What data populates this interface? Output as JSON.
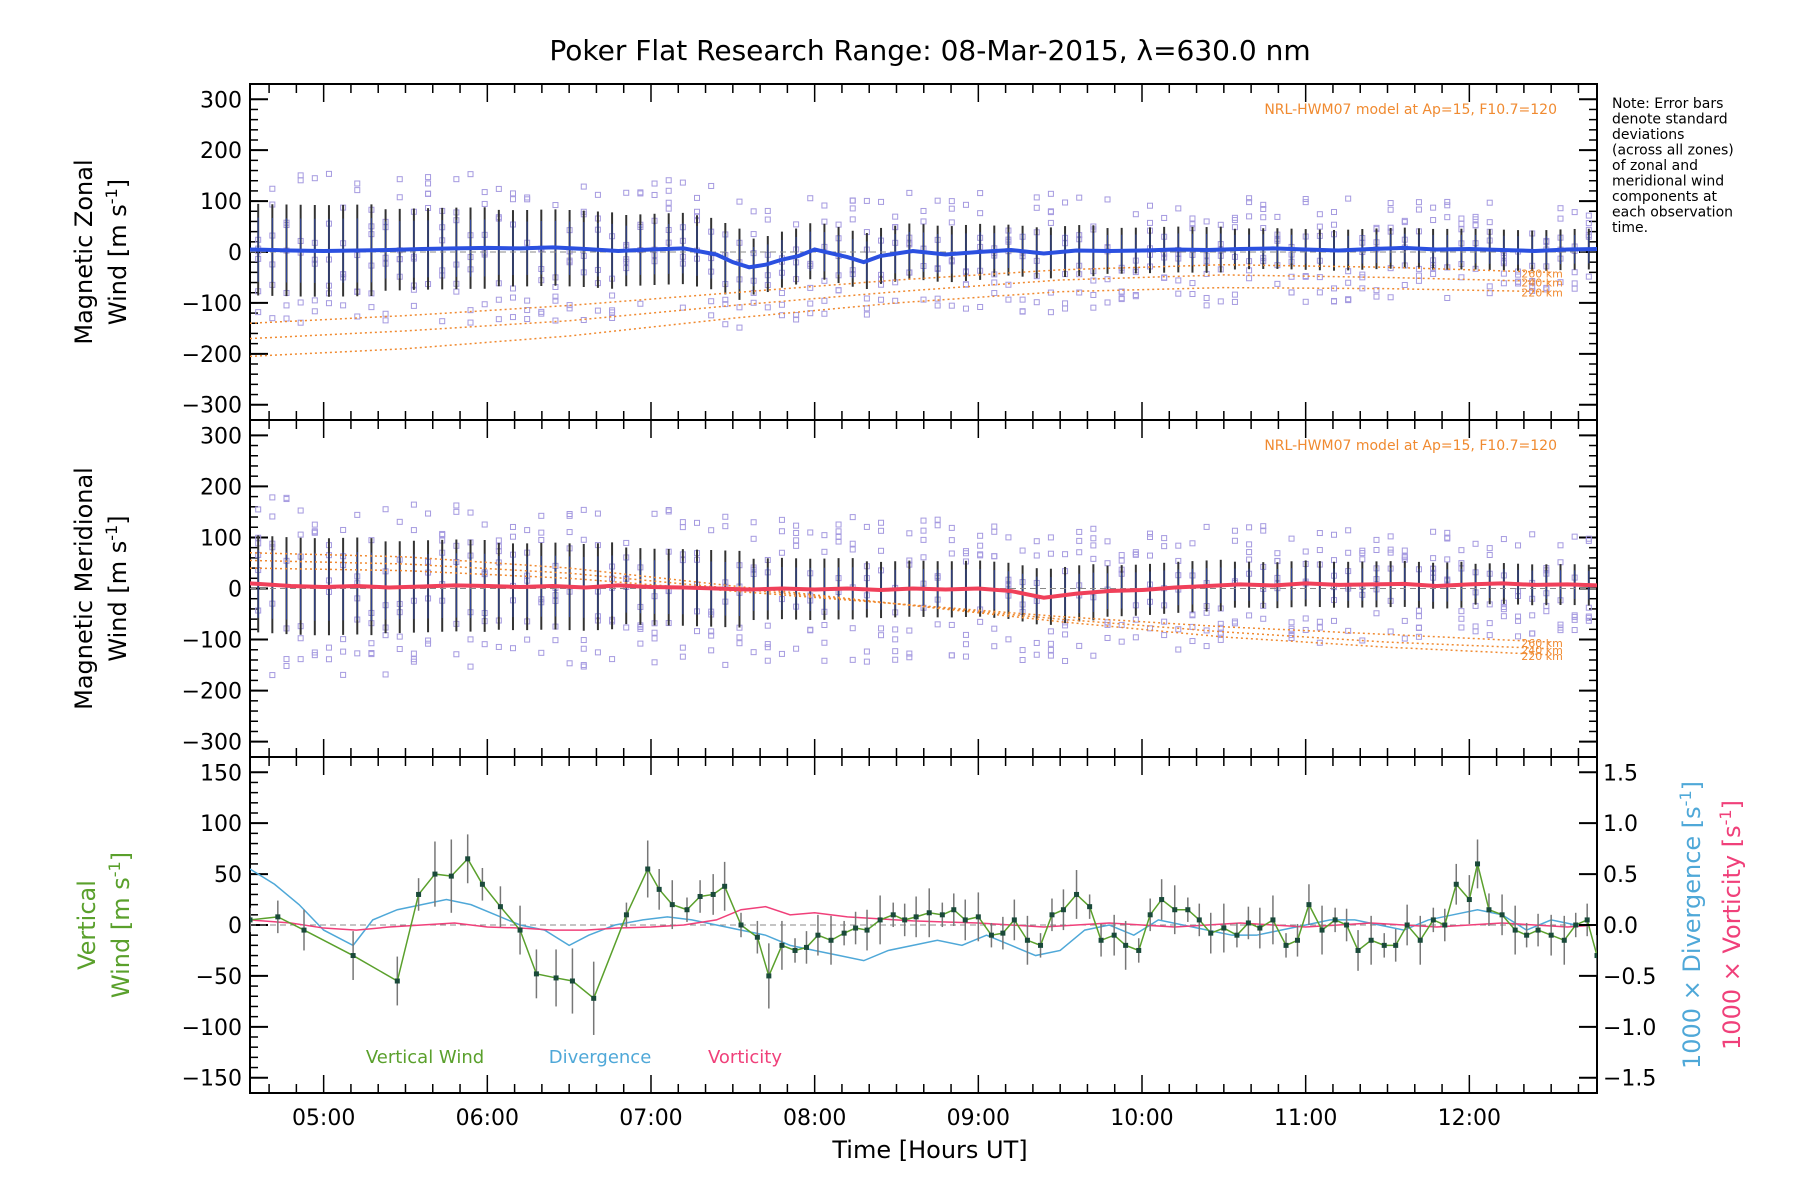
{
  "figure": {
    "title": "Poker Flat Research Range: 08-Mar-2015, λ=630.0 nm",
    "xlabel": "Time [Hours UT]",
    "x_ticks": [
      "05:00",
      "06:00",
      "07:00",
      "08:00",
      "09:00",
      "10:00",
      "11:00",
      "12:00"
    ],
    "note_lines": [
      "Note: Error bars",
      "denote standard",
      "deviations",
      "(across all zones)",
      "of zonal and",
      "meridional wind",
      "components at",
      "each observation",
      "time."
    ],
    "model_label": "NRL-HWM07 model at Ap=15, F10.7=120",
    "altitude_labels": [
      "260 km",
      "240 km",
      "220 km"
    ],
    "colors": {
      "zonal": "#2b50e0",
      "meridional": "#f0405a",
      "vertical": "#5aa02c",
      "divergence": "#4fa8d8",
      "vorticity": "#f0407a",
      "model": "#f08a30",
      "scatter": "#a59ae0",
      "errbar": "#000000"
    }
  },
  "chart_data": [
    {
      "type": "line",
      "panel": "zonal",
      "ylabel_line1": "Magnetic Zonal",
      "ylabel_line2": "Wind [m s",
      "ylabel_sup": "-1",
      "ylabel_close": "]",
      "ylim": [
        -330,
        330
      ],
      "y_ticks": [
        "300",
        "200",
        "100",
        "0",
        "−100",
        "−200",
        "−300"
      ],
      "x_unit": "hours UT",
      "xlim": [
        4.55,
        12.78
      ],
      "series": [
        {
          "x": [
            4.55,
            4.8,
            5.0,
            5.2,
            5.4,
            5.6,
            5.8,
            6.0,
            6.2,
            6.4,
            6.6,
            6.8,
            7.0,
            7.2,
            7.4,
            7.5,
            7.6,
            7.7,
            7.8,
            7.9,
            8.0,
            8.2,
            8.3,
            8.4,
            8.6,
            8.8,
            9.0,
            9.2,
            9.4,
            9.6,
            9.8,
            10.0,
            10.2,
            10.4,
            10.6,
            10.8,
            11.0,
            11.2,
            11.4,
            11.6,
            11.8,
            12.0,
            12.2,
            12.4,
            12.6,
            12.78
          ],
          "y": [
            5,
            3,
            2,
            3,
            4,
            6,
            7,
            8,
            7,
            9,
            6,
            2,
            5,
            7,
            -5,
            -20,
            -30,
            -25,
            -15,
            -8,
            5,
            -10,
            -20,
            -8,
            2,
            -5,
            0,
            4,
            -3,
            3,
            2,
            3,
            5,
            4,
            6,
            7,
            5,
            3,
            6,
            8,
            5,
            6,
            4,
            2,
            5,
            6
          ]
        }
      ],
      "model_curves": [
        {
          "name": "260 km",
          "x": [
            4.55,
            5.5,
            6.5,
            7.5,
            8.5,
            9.5,
            10.5,
            11.5,
            12.5
          ],
          "y": [
            -140,
            -125,
            -105,
            -80,
            -55,
            -35,
            -25,
            -30,
            -40
          ]
        },
        {
          "name": "240 km",
          "x": [
            4.55,
            5.5,
            6.5,
            7.5,
            8.5,
            9.5,
            10.5,
            11.5,
            12.5
          ],
          "y": [
            -170,
            -155,
            -135,
            -105,
            -78,
            -55,
            -45,
            -50,
            -58
          ]
        },
        {
          "name": "220 km",
          "x": [
            4.55,
            5.5,
            6.5,
            7.5,
            8.5,
            9.5,
            10.5,
            11.5,
            12.5
          ],
          "y": [
            -205,
            -190,
            -165,
            -130,
            -100,
            -78,
            -70,
            -72,
            -78
          ]
        }
      ],
      "error_sd": [
        90,
        80,
        75,
        70,
        55,
        55,
        50,
        45,
        40,
        40,
        40
      ],
      "scatter_spread": 160
    },
    {
      "type": "line",
      "panel": "meridional",
      "ylabel_line1": "Magnetic Meridional",
      "ylabel_line2": "Wind [m s",
      "ylabel_sup": "-1",
      "ylabel_close": "]",
      "ylim": [
        -330,
        330
      ],
      "y_ticks": [
        "300",
        "200",
        "100",
        "0",
        "−100",
        "−200",
        "−300"
      ],
      "xlim": [
        4.55,
        12.78
      ],
      "series": [
        {
          "x": [
            4.55,
            4.8,
            5.0,
            5.2,
            5.4,
            5.6,
            5.8,
            6.0,
            6.2,
            6.4,
            6.6,
            6.8,
            7.0,
            7.2,
            7.4,
            7.6,
            7.8,
            8.0,
            8.2,
            8.4,
            8.6,
            8.8,
            9.0,
            9.2,
            9.4,
            9.6,
            9.8,
            10.0,
            10.2,
            10.4,
            10.6,
            10.8,
            11.0,
            11.2,
            11.4,
            11.6,
            11.8,
            12.0,
            12.2,
            12.4,
            12.6,
            12.78
          ],
          "y": [
            10,
            5,
            3,
            5,
            2,
            4,
            6,
            5,
            3,
            5,
            2,
            6,
            3,
            2,
            0,
            -2,
            0,
            -2,
            0,
            -3,
            0,
            -2,
            0,
            -5,
            -18,
            -10,
            -5,
            -3,
            2,
            5,
            8,
            6,
            10,
            7,
            8,
            9,
            5,
            8,
            10,
            7,
            8,
            6
          ]
        }
      ],
      "model_curves": [
        {
          "name": "260 km",
          "x": [
            4.55,
            5.5,
            6.5,
            7.5,
            8.5,
            9.5,
            10.5,
            11.5,
            12.5
          ],
          "y": [
            40,
            35,
            20,
            -5,
            -30,
            -55,
            -75,
            -90,
            -105
          ]
        },
        {
          "name": "240 km",
          "x": [
            4.55,
            5.5,
            6.5,
            7.5,
            8.5,
            9.5,
            10.5,
            11.5,
            12.5
          ],
          "y": [
            55,
            48,
            30,
            0,
            -30,
            -60,
            -85,
            -105,
            -118
          ]
        },
        {
          "name": "220 km",
          "x": [
            4.55,
            5.5,
            6.5,
            7.5,
            8.5,
            9.5,
            10.5,
            11.5,
            12.5
          ],
          "y": [
            70,
            62,
            40,
            5,
            -30,
            -65,
            -95,
            -115,
            -130
          ]
        }
      ],
      "error_sd": [
        95,
        90,
        85,
        75,
        60,
        55,
        55,
        50,
        45,
        45,
        40
      ],
      "scatter_spread": 180
    },
    {
      "type": "line",
      "panel": "vertical",
      "ylabel_line1": "Vertical",
      "ylabel_line2": "Wind [m s",
      "ylabel_sup": "-1",
      "ylabel_close": "]",
      "ylim": [
        -165,
        165
      ],
      "y_ticks": [
        "150",
        "100",
        "50",
        "0",
        "−50",
        "−100",
        "−150"
      ],
      "right_ylim": [
        -1.65,
        1.65
      ],
      "right_ticks": [
        "1.5",
        "1.0",
        "0.5",
        "0.0",
        "−0.5",
        "−1.0",
        "−1.5"
      ],
      "right_label_div": "1000 × Divergence [s",
      "right_label_vort": "1000 × Vorticity [s",
      "right_sup": "-1",
      "right_close": "]",
      "legend": [
        "Vertical Wind",
        "Divergence",
        "Vorticity"
      ],
      "series": [
        {
          "name": "Vertical Wind",
          "x": [
            4.55,
            4.72,
            4.88,
            5.18,
            5.45,
            5.58,
            5.68,
            5.78,
            5.88,
            5.97,
            6.08,
            6.2,
            6.3,
            6.42,
            6.52,
            6.65,
            6.85,
            6.98,
            7.05,
            7.13,
            7.22,
            7.3,
            7.38,
            7.45,
            7.55,
            7.65,
            7.72,
            7.8,
            7.88,
            7.95,
            8.02,
            8.1,
            8.18,
            8.25,
            8.32,
            8.4,
            8.48,
            8.55,
            8.62,
            8.7,
            8.78,
            8.85,
            8.92,
            9.0,
            9.08,
            9.15,
            9.22,
            9.3,
            9.38,
            9.45,
            9.52,
            9.6,
            9.68,
            9.75,
            9.83,
            9.9,
            9.98,
            10.05,
            10.12,
            10.2,
            10.28,
            10.35,
            10.42,
            10.5,
            10.58,
            10.65,
            10.72,
            10.8,
            10.88,
            10.95,
            11.02,
            11.1,
            11.18,
            11.25,
            11.32,
            11.4,
            11.48,
            11.55,
            11.62,
            11.7,
            11.78,
            11.85,
            11.92,
            12.0,
            12.05,
            12.12,
            12.2,
            12.28,
            12.35,
            12.42,
            12.5,
            12.58,
            12.65,
            12.72,
            12.78
          ],
          "y": [
            5,
            8,
            -5,
            -30,
            -55,
            30,
            50,
            48,
            65,
            40,
            18,
            -5,
            -48,
            -52,
            -55,
            -72,
            10,
            55,
            35,
            20,
            15,
            28,
            30,
            38,
            0,
            -12,
            -50,
            -20,
            -25,
            -22,
            -10,
            -15,
            -8,
            -3,
            -5,
            5,
            10,
            5,
            8,
            12,
            10,
            15,
            5,
            8,
            -10,
            -8,
            5,
            -15,
            -20,
            10,
            15,
            30,
            18,
            -15,
            -10,
            -20,
            -25,
            10,
            25,
            15,
            15,
            5,
            -8,
            -3,
            -10,
            2,
            -3,
            5,
            -20,
            -15,
            20,
            -5,
            5,
            0,
            -25,
            -15,
            -20,
            -20,
            0,
            -15,
            5,
            0,
            40,
            25,
            60,
            15,
            10,
            -5,
            -10,
            -5,
            -10,
            -15,
            0,
            5,
            -30
          ]
        },
        {
          "name": "Divergence",
          "x": [
            4.55,
            4.7,
            4.85,
            5.0,
            5.18,
            5.3,
            5.45,
            5.6,
            5.75,
            5.9,
            6.05,
            6.2,
            6.35,
            6.5,
            6.62,
            6.78,
            6.95,
            7.1,
            7.25,
            7.4,
            7.55,
            7.7,
            7.85,
            8.0,
            8.15,
            8.3,
            8.45,
            8.6,
            8.75,
            8.9,
            9.05,
            9.2,
            9.35,
            9.5,
            9.65,
            9.8,
            9.95,
            10.1,
            10.25,
            10.4,
            10.55,
            10.7,
            10.85,
            11.0,
            11.15,
            11.3,
            11.45,
            11.6,
            11.75,
            11.9,
            12.05,
            12.2,
            12.35,
            12.5,
            12.65,
            12.78
          ],
          "y": [
            0.55,
            0.4,
            0.2,
            -0.05,
            -0.2,
            0.05,
            0.15,
            0.2,
            0.25,
            0.2,
            0.1,
            0.0,
            -0.05,
            -0.2,
            -0.1,
            0.0,
            0.05,
            0.08,
            0.05,
            0.0,
            -0.05,
            -0.1,
            -0.2,
            -0.25,
            -0.3,
            -0.35,
            -0.25,
            -0.2,
            -0.15,
            -0.2,
            -0.1,
            -0.2,
            -0.3,
            -0.25,
            -0.05,
            0.0,
            -0.1,
            0.05,
            0.0,
            -0.05,
            -0.1,
            -0.1,
            -0.05,
            0.0,
            0.05,
            0.05,
            0.0,
            -0.05,
            0.05,
            0.1,
            0.15,
            0.1,
            -0.05,
            0.05,
            0.0,
            0.0
          ]
        },
        {
          "name": "Vorticity",
          "x": [
            4.55,
            4.8,
            5.0,
            5.2,
            5.4,
            5.6,
            5.8,
            6.0,
            6.2,
            6.4,
            6.6,
            6.8,
            7.0,
            7.2,
            7.4,
            7.55,
            7.7,
            7.85,
            8.0,
            8.2,
            8.4,
            8.6,
            8.8,
            9.0,
            9.2,
            9.4,
            9.6,
            9.8,
            10.0,
            10.2,
            10.4,
            10.6,
            10.8,
            11.0,
            11.2,
            11.4,
            11.6,
            11.8,
            12.0,
            12.2,
            12.4,
            12.6,
            12.78
          ],
          "y": [
            0.05,
            0.02,
            -0.03,
            -0.05,
            -0.02,
            0.0,
            0.02,
            -0.02,
            -0.03,
            -0.05,
            -0.05,
            -0.03,
            -0.02,
            0.0,
            0.05,
            0.15,
            0.18,
            0.1,
            0.12,
            0.08,
            0.06,
            0.04,
            0.03,
            0.02,
            0.0,
            -0.02,
            0.0,
            0.02,
            0.0,
            -0.02,
            0.0,
            0.02,
            0.0,
            -0.02,
            0.0,
            0.02,
            0.0,
            -0.02,
            0.0,
            0.02,
            0.0,
            -0.02,
            0.0
          ]
        }
      ]
    }
  ]
}
